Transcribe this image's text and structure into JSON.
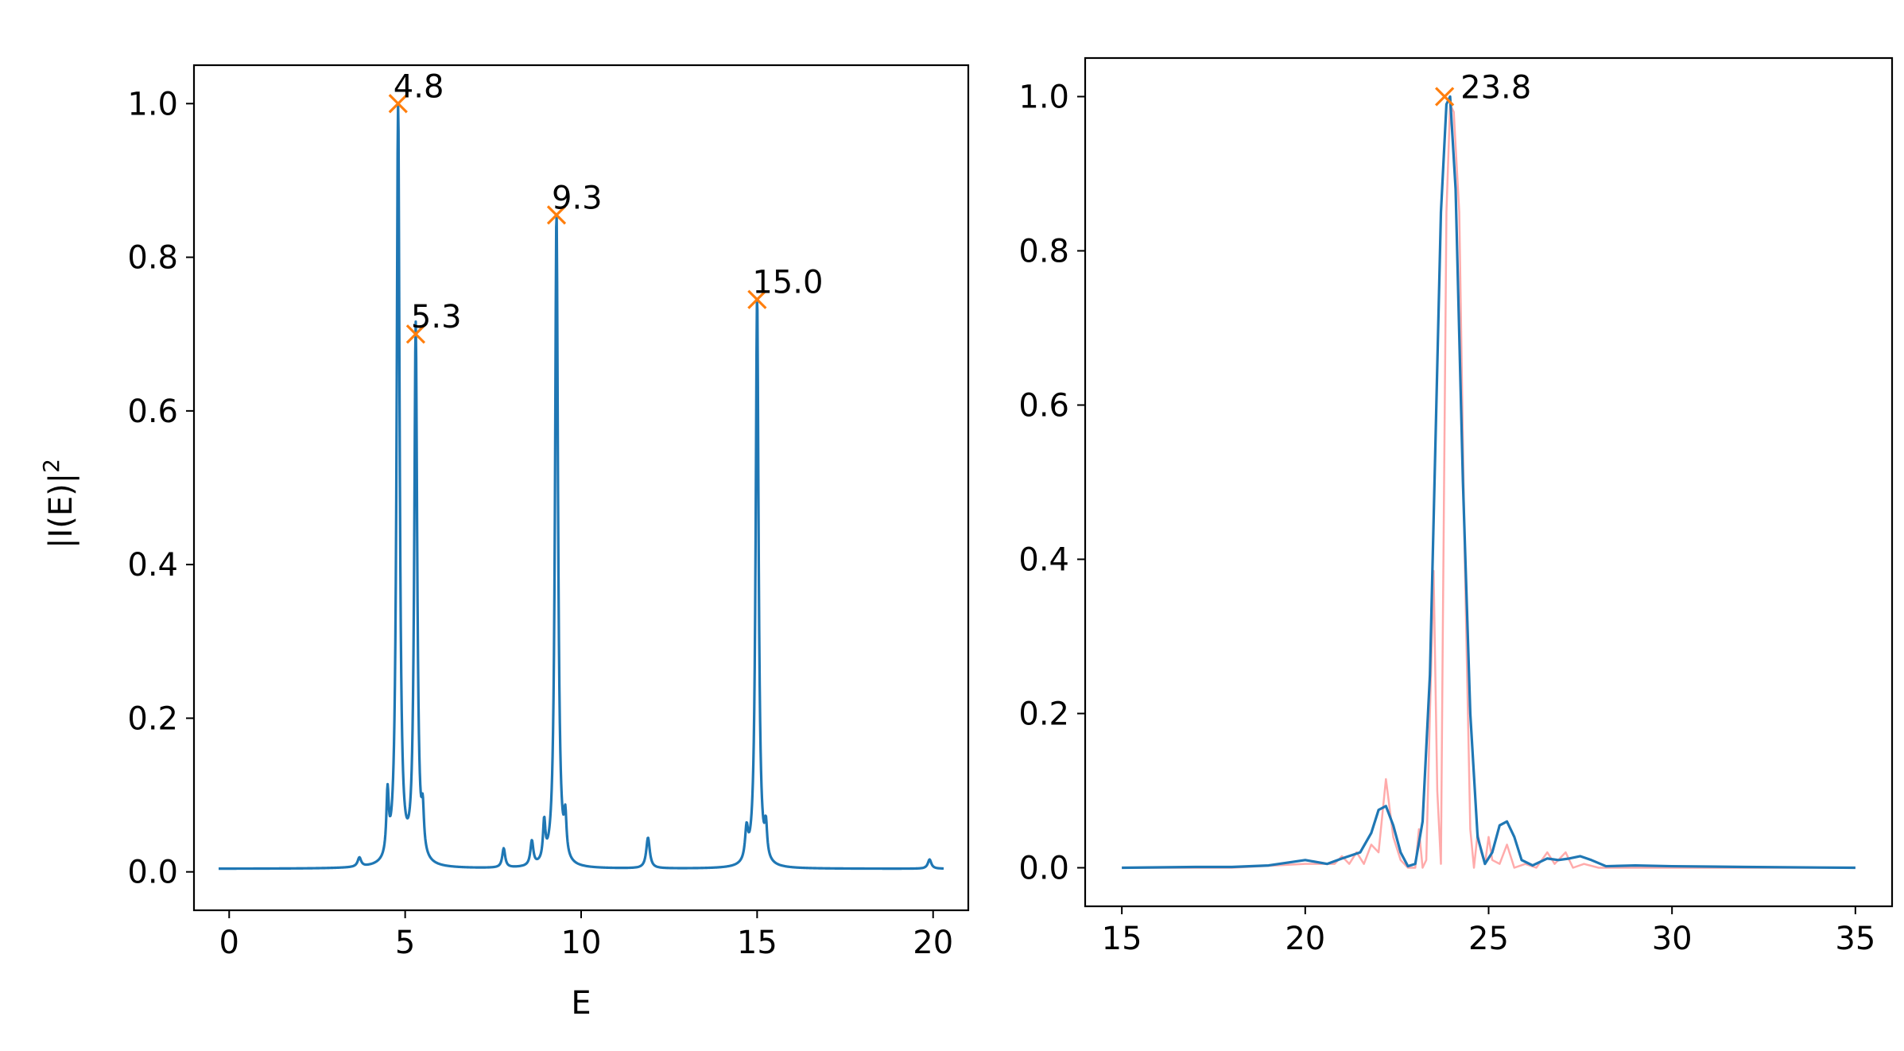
{
  "chart_data": [
    {
      "type": "line",
      "title": "",
      "xlabel": "E",
      "ylabel": "|I(E)|",
      "ylabel_exponent": "2",
      "xlim": [
        -1.0,
        21.0
      ],
      "ylim": [
        -0.05,
        1.05
      ],
      "xticks": [
        0,
        5,
        10,
        15,
        20
      ],
      "xtick_labels": [
        "0",
        "5",
        "10",
        "15",
        "20"
      ],
      "yticks": [
        0.0,
        0.2,
        0.4,
        0.6,
        0.8,
        1.0
      ],
      "ytick_labels": [
        "0.0",
        "0.2",
        "0.4",
        "0.6",
        "0.8",
        "1.0"
      ],
      "grid": false,
      "series": [
        {
          "color": "#1f77b4",
          "baseline": 0.004,
          "peaks": [
            {
              "x": 3.7,
              "h": 0.012,
              "w": 0.06
            },
            {
              "x": 4.5,
              "h": 0.08,
              "w": 0.04
            },
            {
              "x": 4.8,
              "h": 1.0,
              "w": 0.05
            },
            {
              "x": 5.3,
              "h": 0.7,
              "w": 0.05
            },
            {
              "x": 5.5,
              "h": 0.05,
              "w": 0.04
            },
            {
              "x": 7.8,
              "h": 0.025,
              "w": 0.05
            },
            {
              "x": 8.6,
              "h": 0.032,
              "w": 0.05
            },
            {
              "x": 8.95,
              "h": 0.05,
              "w": 0.04
            },
            {
              "x": 9.3,
              "h": 0.855,
              "w": 0.05
            },
            {
              "x": 9.55,
              "h": 0.05,
              "w": 0.04
            },
            {
              "x": 11.9,
              "h": 0.04,
              "w": 0.06
            },
            {
              "x": 14.7,
              "h": 0.04,
              "w": 0.05
            },
            {
              "x": 15.0,
              "h": 0.745,
              "w": 0.05
            },
            {
              "x": 15.25,
              "h": 0.04,
              "w": 0.04
            },
            {
              "x": 19.9,
              "h": 0.012,
              "w": 0.06
            }
          ]
        }
      ],
      "markers": [
        {
          "x": 4.8,
          "y": 1.0,
          "label": "4.8",
          "color": "#ff7f0e"
        },
        {
          "x": 5.3,
          "y": 0.7,
          "label": "5.3",
          "color": "#ff7f0e"
        },
        {
          "x": 9.3,
          "y": 0.855,
          "label": "9.3",
          "color": "#ff7f0e"
        },
        {
          "x": 15.0,
          "y": 0.745,
          "label": "15.0",
          "color": "#ff7f0e"
        }
      ]
    },
    {
      "type": "line",
      "title": "",
      "xlabel": "",
      "ylabel": "",
      "xlim": [
        14.0,
        36.0
      ],
      "ylim": [
        -0.05,
        1.05
      ],
      "xticks": [
        15,
        20,
        25,
        30,
        35
      ],
      "xtick_labels": [
        "15",
        "20",
        "25",
        "30",
        "35"
      ],
      "yticks": [
        0.0,
        0.2,
        0.4,
        0.6,
        0.8,
        1.0
      ],
      "ytick_labels": [
        "0.0",
        "0.2",
        "0.4",
        "0.6",
        "0.8",
        "1.0"
      ],
      "grid": false,
      "series": [
        {
          "color": "#ff6666",
          "opacity": 0.55,
          "points": [
            [
              15.0,
              0.0
            ],
            [
              18.0,
              0.0
            ],
            [
              20.0,
              0.005
            ],
            [
              20.8,
              0.005
            ],
            [
              21.0,
              0.015
            ],
            [
              21.2,
              0.005
            ],
            [
              21.4,
              0.02
            ],
            [
              21.6,
              0.005
            ],
            [
              21.8,
              0.03
            ],
            [
              22.0,
              0.02
            ],
            [
              22.2,
              0.115
            ],
            [
              22.4,
              0.04
            ],
            [
              22.6,
              0.01
            ],
            [
              22.8,
              0.0
            ],
            [
              23.0,
              0.0
            ],
            [
              23.1,
              0.05
            ],
            [
              23.2,
              0.0
            ],
            [
              23.3,
              0.01
            ],
            [
              23.4,
              0.2
            ],
            [
              23.5,
              0.385
            ],
            [
              23.6,
              0.1
            ],
            [
              23.7,
              0.005
            ],
            [
              23.75,
              0.3
            ],
            [
              23.85,
              0.85
            ],
            [
              23.95,
              0.99
            ],
            [
              24.05,
              0.98
            ],
            [
              24.2,
              0.85
            ],
            [
              24.35,
              0.4
            ],
            [
              24.5,
              0.05
            ],
            [
              24.6,
              0.0
            ],
            [
              24.7,
              0.045
            ],
            [
              24.8,
              0.02
            ],
            [
              24.9,
              0.005
            ],
            [
              25.0,
              0.04
            ],
            [
              25.1,
              0.01
            ],
            [
              25.3,
              0.005
            ],
            [
              25.5,
              0.03
            ],
            [
              25.7,
              0.0
            ],
            [
              26.0,
              0.005
            ],
            [
              26.3,
              0.0
            ],
            [
              26.6,
              0.02
            ],
            [
              26.8,
              0.005
            ],
            [
              27.1,
              0.02
            ],
            [
              27.3,
              0.0
            ],
            [
              27.6,
              0.005
            ],
            [
              28.0,
              0.0
            ],
            [
              35.0,
              0.0
            ]
          ]
        },
        {
          "color": "#1f77b4",
          "opacity": 1.0,
          "points": [
            [
              15.0,
              0.0
            ],
            [
              17.0,
              0.001
            ],
            [
              18.0,
              0.001
            ],
            [
              19.0,
              0.003
            ],
            [
              20.0,
              0.01
            ],
            [
              20.6,
              0.005
            ],
            [
              21.0,
              0.012
            ],
            [
              21.5,
              0.02
            ],
            [
              21.8,
              0.045
            ],
            [
              22.0,
              0.075
            ],
            [
              22.2,
              0.08
            ],
            [
              22.4,
              0.055
            ],
            [
              22.6,
              0.02
            ],
            [
              22.8,
              0.002
            ],
            [
              23.0,
              0.005
            ],
            [
              23.2,
              0.06
            ],
            [
              23.4,
              0.25
            ],
            [
              23.55,
              0.55
            ],
            [
              23.7,
              0.85
            ],
            [
              23.85,
              0.99
            ],
            [
              23.95,
              1.0
            ],
            [
              24.1,
              0.88
            ],
            [
              24.3,
              0.5
            ],
            [
              24.5,
              0.2
            ],
            [
              24.7,
              0.04
            ],
            [
              24.9,
              0.005
            ],
            [
              25.1,
              0.02
            ],
            [
              25.3,
              0.055
            ],
            [
              25.5,
              0.06
            ],
            [
              25.7,
              0.04
            ],
            [
              25.9,
              0.01
            ],
            [
              26.2,
              0.003
            ],
            [
              26.6,
              0.012
            ],
            [
              26.9,
              0.01
            ],
            [
              27.2,
              0.012
            ],
            [
              27.5,
              0.015
            ],
            [
              27.8,
              0.01
            ],
            [
              28.2,
              0.002
            ],
            [
              29.0,
              0.003
            ],
            [
              30.0,
              0.002
            ],
            [
              32.0,
              0.001
            ],
            [
              35.0,
              0.0
            ]
          ]
        }
      ],
      "markers": [
        {
          "x": 23.8,
          "y": 1.0,
          "label": "23.8",
          "color": "#ff7f0e"
        }
      ]
    }
  ]
}
